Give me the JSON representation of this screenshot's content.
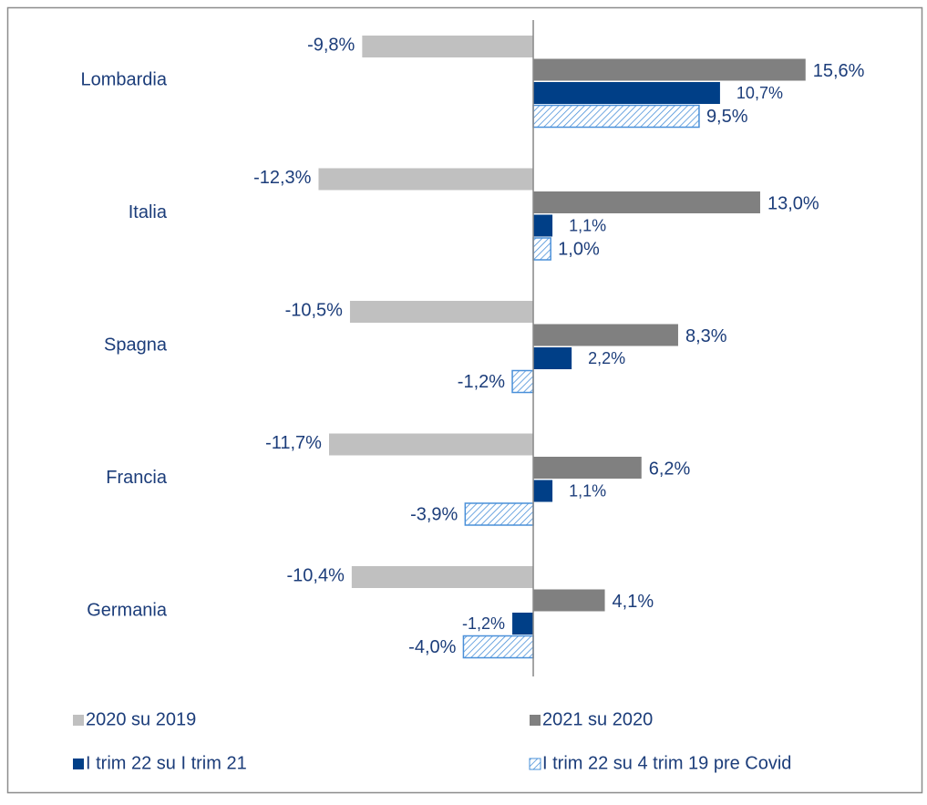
{
  "chart_data": {
    "type": "barh",
    "categories": [
      "Lombardia",
      "Italia",
      "Spagna",
      "Francia",
      "Germania"
    ],
    "series": [
      {
        "name": "2020 su 2019",
        "color": "#c0c0c0",
        "values": [
          -9.8,
          -12.3,
          -10.5,
          -11.7,
          -10.4
        ],
        "value_labels": [
          "-9,8%",
          "-12,3%",
          "-10,5%",
          "-11,7%",
          "-10,4%"
        ]
      },
      {
        "name": "2021 su 2020",
        "color": "#808080",
        "values": [
          15.6,
          13.0,
          8.3,
          6.2,
          4.1
        ],
        "value_labels": [
          "15,6%",
          "13,0%",
          "8,3%",
          "6,2%",
          "4,1%"
        ]
      },
      {
        "name": "I trim 22 su I trim 21",
        "color": "#003f87",
        "values": [
          10.7,
          1.1,
          2.2,
          1.1,
          -1.2
        ],
        "value_labels": [
          "10,7%",
          "1,1%",
          "2,2%",
          "1,1%",
          "-1,2%"
        ]
      },
      {
        "name": "I trim 22 su 4 trim 19 pre Covid",
        "color": "#4a90d9",
        "hatch": true,
        "values": [
          9.5,
          1.0,
          -1.2,
          -3.9,
          -4.0
        ],
        "value_labels": [
          "9,5%",
          "1,0%",
          "-1,2%",
          "-3,9%",
          "-4,0%"
        ]
      }
    ],
    "xlim": [
      -13.5,
      16.5
    ],
    "legend": "bottom"
  }
}
